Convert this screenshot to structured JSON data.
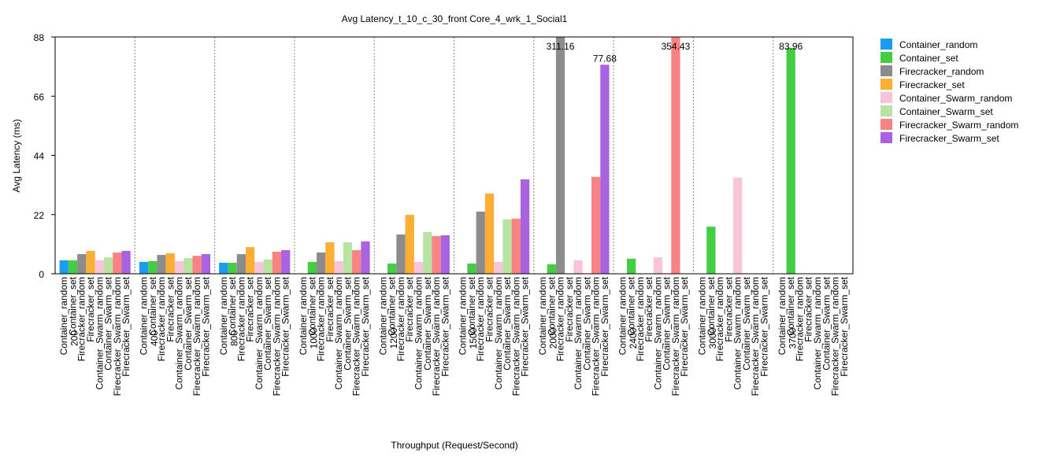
{
  "chart_data": {
    "type": "bar",
    "title": "Avg Latency_t_10_c_30_front Core_4_wrk_1_Social1",
    "x_label": "Throughput (Request/Second)",
    "y_label": "Avg Latency (ms)",
    "categories": [
      "200",
      "400",
      "800",
      "1000",
      "1200",
      "1500",
      "2000",
      "2400",
      "3000",
      "3700"
    ],
    "ylim": [
      0,
      88
    ],
    "yticks": [
      0,
      22,
      44,
      66,
      88
    ],
    "legend": "outside-right",
    "series": [
      {
        "name": "Container_random",
        "color": "#1a9df0",
        "values": [
          5.0,
          4.4,
          4.1,
          null,
          null,
          null,
          null,
          null,
          null,
          null
        ]
      },
      {
        "name": "Container_set",
        "color": "#44cc44",
        "values": [
          5.0,
          4.7,
          4.1,
          4.4,
          3.8,
          3.8,
          3.5,
          5.6,
          17.5,
          83.96
        ],
        "value_labels": [
          null,
          null,
          null,
          null,
          null,
          null,
          null,
          null,
          null,
          "83.96"
        ]
      },
      {
        "name": "Firecracker_random",
        "color": "#8c8c8c",
        "values": [
          7.3,
          7.0,
          7.3,
          7.9,
          14.6,
          23.1,
          311.16,
          null,
          null,
          null
        ],
        "value_labels": [
          null,
          null,
          null,
          null,
          null,
          null,
          "311.16",
          null,
          null,
          null
        ]
      },
      {
        "name": "Firecracker_set",
        "color": "#fdae33",
        "values": [
          8.5,
          7.6,
          9.9,
          11.7,
          21.9,
          29.8,
          null,
          null,
          null,
          null
        ]
      },
      {
        "name": "Container_Swarm_random",
        "color": "#f9c3d9",
        "values": [
          5.0,
          4.7,
          4.4,
          4.7,
          4.4,
          4.4,
          5.0,
          6.1,
          35.7,
          null
        ]
      },
      {
        "name": "Container_Swarm_set",
        "color": "#b8e3a0",
        "values": [
          6.1,
          5.8,
          5.3,
          11.7,
          15.5,
          20.2,
          null,
          null,
          null,
          null
        ]
      },
      {
        "name": "Firecracker_Swarm_random",
        "color": "#f98383",
        "values": [
          7.9,
          6.7,
          8.2,
          8.8,
          14.0,
          20.5,
          36.0,
          354.43,
          null,
          null
        ],
        "value_labels": [
          null,
          null,
          null,
          null,
          null,
          null,
          null,
          "354.43",
          null,
          null
        ]
      },
      {
        "name": "Firecracker_Swarm_set",
        "color": "#a962e0",
        "values": [
          8.5,
          7.3,
          8.8,
          12.0,
          14.3,
          35.1,
          77.68,
          null,
          null,
          null
        ],
        "value_labels": [
          null,
          null,
          null,
          null,
          null,
          null,
          "77.68",
          null,
          null,
          null
        ]
      }
    ]
  }
}
